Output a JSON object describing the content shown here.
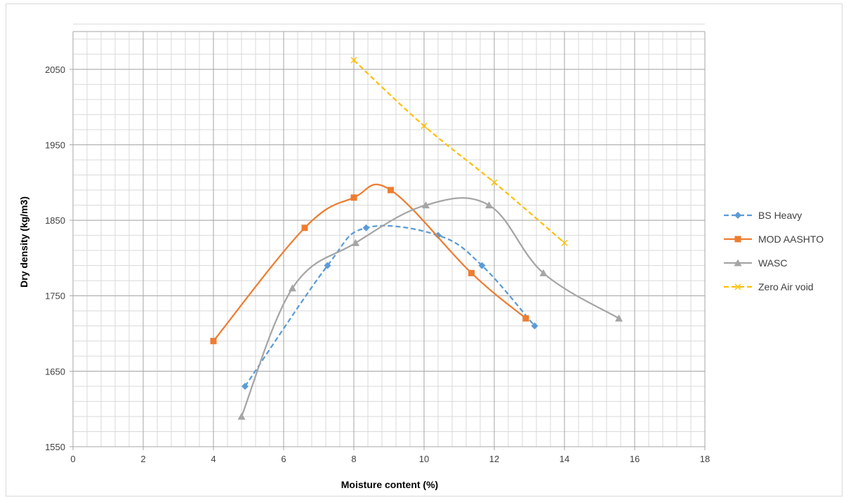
{
  "chart_data": {
    "type": "scatter",
    "xlabel": "Moisture content (%)",
    "ylabel": "Dry density (kg/m3)",
    "xlim": [
      0,
      18
    ],
    "ylim": [
      1550,
      2100
    ],
    "x_ticks": [
      "0",
      "2",
      "4",
      "6",
      "8",
      "10",
      "12",
      "14",
      "16",
      "18"
    ],
    "y_ticks": [
      "1550",
      "1650",
      "1750",
      "1850",
      "1950",
      "2050"
    ],
    "y_tick_values": [
      1550,
      1650,
      1750,
      1850,
      1950,
      2050
    ],
    "x_tick_values": [
      0,
      2,
      4,
      6,
      8,
      10,
      12,
      14,
      16,
      18
    ],
    "grid": true,
    "minor_grid": true,
    "legend_position": "right",
    "series": [
      {
        "name": "BS Heavy",
        "color": "#5B9BD5",
        "marker": "diamond",
        "dash": true,
        "x": [
          4.9,
          7.25,
          8.35,
          10.4,
          11.65,
          13.15
        ],
        "y": [
          1630,
          1790,
          1840,
          1830,
          1790,
          1710
        ]
      },
      {
        "name": "MOD AASHTO",
        "color": "#ED7D31",
        "marker": "square",
        "dash": false,
        "x": [
          4.0,
          6.6,
          8.0,
          9.05,
          11.35,
          12.9
        ],
        "y": [
          1690,
          1840,
          1880,
          1890,
          1780,
          1720
        ]
      },
      {
        "name": "WASC",
        "color": "#A5A5A5",
        "marker": "triangle",
        "dash": false,
        "x": [
          4.8,
          6.25,
          8.05,
          10.05,
          11.85,
          13.4,
          15.55
        ],
        "y": [
          1590,
          1760,
          1820,
          1870,
          1870,
          1780,
          1720
        ]
      },
      {
        "name": "Zero Air void",
        "color": "#FFC000",
        "marker": "x",
        "dash": true,
        "x": [
          8.0,
          10.0,
          12.0,
          14.0
        ],
        "y": [
          2062,
          1975,
          1900,
          1820
        ]
      }
    ]
  }
}
